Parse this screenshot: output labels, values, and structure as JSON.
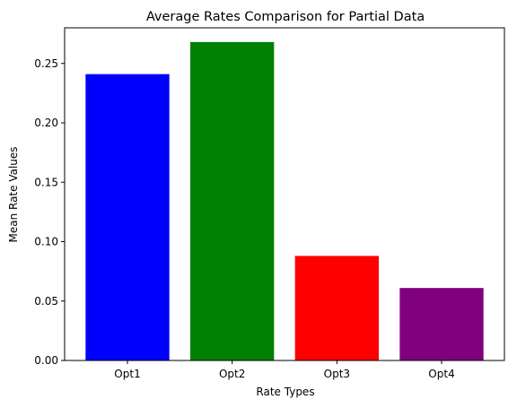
{
  "chart_data": {
    "type": "bar",
    "title": "Average Rates Comparison for Partial Data",
    "xlabel": "Rate Types",
    "ylabel": "Mean Rate Values",
    "categories": [
      "Opt1",
      "Opt2",
      "Opt3",
      "Opt4"
    ],
    "values": [
      0.241,
      0.268,
      0.088,
      0.061
    ],
    "colors": [
      "#0000ff",
      "#008000",
      "#ff0000",
      "#800080"
    ],
    "ylim": [
      0,
      0.28
    ],
    "yticks": [
      0.0,
      0.05,
      0.1,
      0.15,
      0.2,
      0.25
    ],
    "ytick_labels": [
      "0.00",
      "0.05",
      "0.10",
      "0.15",
      "0.20",
      "0.25"
    ],
    "grid": false,
    "legend": "none"
  }
}
